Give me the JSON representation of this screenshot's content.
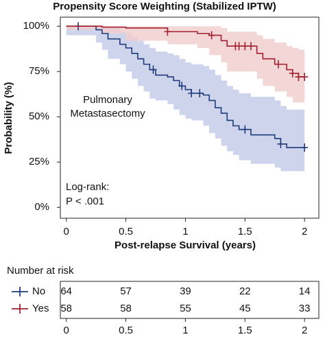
{
  "chart_data": {
    "type": "km",
    "title": "Propensity Score Weighting (Stabilized IPTW)",
    "x_label": "Post-relapse Survival (years)",
    "y_label": "Probability (%)",
    "annotation_lines": [
      "Pulmonary",
      "Metastasectomy"
    ],
    "test_lines": [
      "Log-rank:",
      "P < .001"
    ],
    "xlim": [
      -0.05,
      2.12
    ],
    "ylim": [
      -6,
      105
    ],
    "xticks": [
      0,
      0.5,
      1,
      1.5,
      2
    ],
    "yticks": [
      {
        "value": 0,
        "label": "0%"
      },
      {
        "value": 25,
        "label": "25%"
      },
      {
        "value": 50,
        "label": "50%"
      },
      {
        "value": 75,
        "label": "75%"
      },
      {
        "value": 100,
        "label": "100%"
      }
    ],
    "series": [
      {
        "name": "No",
        "color": "#1f3a7a",
        "band_color": "#c3c9e8",
        "x": [
          0,
          0.25,
          0.3,
          0.35,
          0.45,
          0.5,
          0.55,
          0.6,
          0.65,
          0.7,
          0.75,
          0.85,
          0.9,
          0.95,
          1.0,
          1.05,
          1.15,
          1.2,
          1.25,
          1.3,
          1.35,
          1.4,
          1.45,
          1.55,
          1.75,
          1.8,
          1.85,
          2.0
        ],
        "values": [
          100,
          98,
          96,
          93,
          90,
          88,
          85,
          82,
          79,
          76,
          73,
          72,
          70,
          67,
          65,
          63,
          62,
          59,
          55,
          52,
          48,
          45,
          43,
          40,
          38,
          35,
          33,
          33
        ],
        "upper": [
          100,
          100,
          100,
          99,
          97,
          96,
          94,
          92,
          90,
          88,
          86,
          85,
          84,
          82,
          80,
          79,
          78,
          76,
          73,
          70,
          67,
          65,
          63,
          61,
          59,
          56,
          54,
          54
        ],
        "lower": [
          100,
          95,
          91,
          87,
          82,
          79,
          75,
          71,
          67,
          64,
          60,
          59,
          57,
          54,
          51,
          49,
          48,
          45,
          41,
          38,
          34,
          31,
          29,
          26,
          24,
          22,
          20,
          20
        ],
        "censor_x": [
          0.1,
          0.73,
          0.97,
          1.05,
          1.12,
          1.5,
          1.8,
          2.0
        ]
      },
      {
        "name": "Yes",
        "color": "#a3202e",
        "band_color": "#f0cccc",
        "x": [
          0,
          0.3,
          0.5,
          0.85,
          1.1,
          1.2,
          1.3,
          1.35,
          1.6,
          1.65,
          1.75,
          1.85,
          1.9,
          1.95,
          2.0
        ],
        "values": [
          100,
          99.5,
          99,
          97,
          96,
          95,
          92,
          89,
          85,
          82,
          79,
          76,
          74,
          72,
          72
        ],
        "upper": [
          100,
          100,
          100,
          100,
          100,
          100,
          99,
          97,
          95,
          93,
          91,
          89,
          88,
          87,
          87
        ],
        "lower": [
          100,
          98,
          96,
          92,
          90,
          88,
          84,
          80,
          75,
          71,
          67,
          64,
          61,
          58,
          58
        ],
        "censor_x": [
          0.85,
          1.22,
          1.42,
          1.45,
          1.5,
          1.55,
          1.78,
          1.9,
          1.95,
          2.0
        ]
      }
    ],
    "risk_table": {
      "title": "Number at risk",
      "times": [
        0,
        0.5,
        1,
        1.5,
        2
      ],
      "counts": [
        [
          64,
          57,
          39,
          22,
          14
        ],
        [
          58,
          58,
          55,
          45,
          33
        ]
      ]
    }
  }
}
